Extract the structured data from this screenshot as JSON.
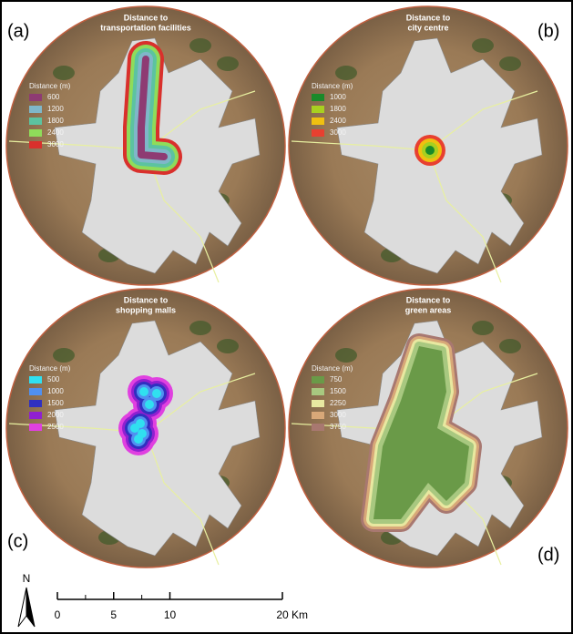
{
  "panels": [
    {
      "label": "(a)",
      "title": [
        "Distance to",
        "transportation facilities"
      ],
      "legend_title": "Distance (m)",
      "legend": [
        {
          "text": "600",
          "color": "#8e3b73"
        },
        {
          "text": "1200",
          "color": "#7fb7c9"
        },
        {
          "text": "1800",
          "color": "#5cc3a0"
        },
        {
          "text": "2400",
          "color": "#8fdc5a"
        },
        {
          "text": "3000",
          "color": "#d9302c"
        }
      ]
    },
    {
      "label": "(b)",
      "title": [
        "Distance to",
        "city centre"
      ],
      "legend_title": "Distance (m)",
      "legend": [
        {
          "text": "1000",
          "color": "#1a8a2a"
        },
        {
          "text": "1800",
          "color": "#a8d020"
        },
        {
          "text": "2400",
          "color": "#f0c010"
        },
        {
          "text": "3000",
          "color": "#e84030"
        }
      ]
    },
    {
      "label": "(c)",
      "title": [
        "Distance to",
        "shopping malls"
      ],
      "legend_title": "Distance (m)",
      "legend": [
        {
          "text": "500",
          "color": "#30e0f0"
        },
        {
          "text": "1000",
          "color": "#5090f0"
        },
        {
          "text": "1500",
          "color": "#3030c0"
        },
        {
          "text": "2000",
          "color": "#9020d0"
        },
        {
          "text": "2500",
          "color": "#e040e0"
        }
      ]
    },
    {
      "label": "(d)",
      "title": [
        "Distance to",
        "green areas"
      ],
      "legend_title": "Distance (m)",
      "legend": [
        {
          "text": "750",
          "color": "#6a9a48"
        },
        {
          "text": "1500",
          "color": "#a8c880"
        },
        {
          "text": "2250",
          "color": "#e8e8a0"
        },
        {
          "text": "3000",
          "color": "#d8a878"
        },
        {
          "text": "3750",
          "color": "#a87870"
        }
      ]
    }
  ],
  "north": "N",
  "scale_bar": {
    "ticks": [
      0,
      5,
      10,
      20
    ],
    "unit": "Km"
  }
}
